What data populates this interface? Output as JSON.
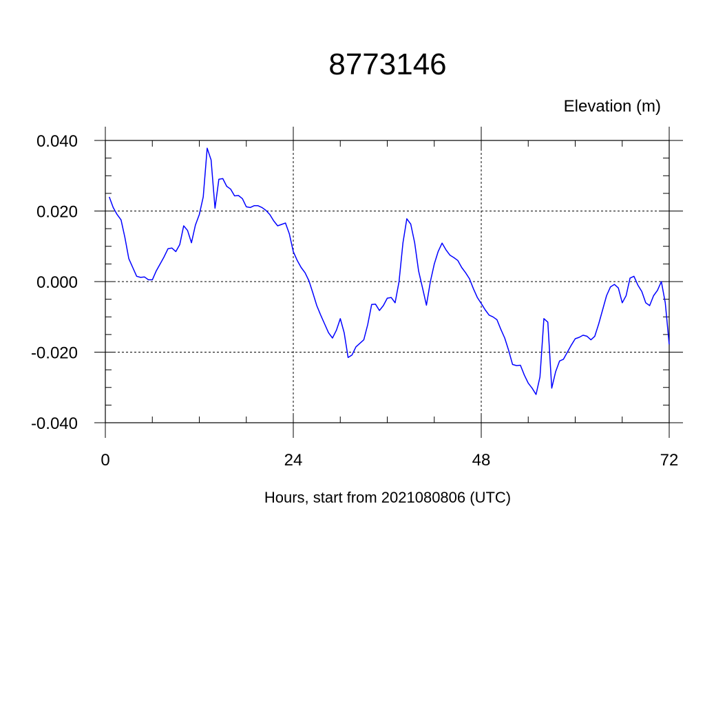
{
  "chart_data": {
    "type": "line",
    "title": "8773146",
    "ylabel": "Elevation (m)",
    "xlabel": "Hours, start from 2021080806 (UTC)",
    "xlim": [
      0,
      72
    ],
    "ylim": [
      -0.04,
      0.04
    ],
    "x_ticks": [
      0,
      24,
      48,
      72
    ],
    "x_tick_labels": [
      "0",
      "24",
      "48",
      "72"
    ],
    "y_ticks": [
      -0.04,
      -0.02,
      0.0,
      0.02,
      0.04
    ],
    "y_tick_labels": [
      "-0.040",
      "-0.020",
      "0.000",
      "0.020",
      "0.040"
    ],
    "grid": true,
    "series": [
      {
        "color": "#0000ff",
        "x": [
          0.5,
          1.0,
          1.5,
          2.0,
          2.5,
          3.0,
          3.5,
          4.0,
          4.5,
          5.0,
          5.5,
          6.0,
          6.5,
          7.0,
          7.5,
          8.0,
          8.5,
          9.0,
          9.5,
          10.0,
          10.5,
          11.0,
          11.5,
          12.0,
          12.5,
          13.0,
          13.5,
          14.0,
          14.5,
          15.0,
          15.5,
          16.0,
          16.5,
          17.0,
          17.5,
          18.0,
          18.5,
          19.0,
          19.5,
          20.0,
          20.5,
          21.0,
          21.5,
          22.0,
          22.5,
          23.0,
          23.5,
          24.0,
          24.5,
          25.0,
          25.5,
          26.0,
          26.5,
          27.0,
          27.5,
          28.0,
          28.5,
          29.0,
          29.5,
          30.0,
          30.5,
          31.0,
          31.5,
          32.0,
          32.5,
          33.0,
          33.5,
          34.0,
          34.5,
          35.0,
          35.5,
          36.0,
          36.5,
          37.0,
          37.5,
          38.0,
          38.5,
          39.0,
          39.5,
          40.0,
          40.5,
          41.0,
          41.5,
          42.0,
          42.5,
          43.0,
          43.5,
          44.0,
          44.5,
          45.0,
          45.5,
          46.0,
          46.5,
          47.0,
          47.5,
          48.0,
          48.5,
          49.0,
          49.5,
          50.0,
          50.5,
          51.0,
          51.5,
          52.0,
          52.5,
          53.0,
          53.5,
          54.0,
          54.5,
          55.0,
          55.5,
          56.0,
          56.5,
          57.0,
          57.5,
          58.0,
          58.5,
          59.0,
          59.5,
          60.0,
          60.5,
          61.0,
          61.5,
          62.0,
          62.5,
          63.0,
          63.5,
          64.0,
          64.5,
          65.0,
          65.5,
          66.0,
          66.5,
          67.0,
          67.5,
          68.0,
          68.5,
          69.0,
          69.5,
          70.0,
          70.5,
          71.0,
          71.5,
          72.0
        ],
        "y": [
          0.024,
          0.021,
          0.019,
          0.0175,
          0.0125,
          0.0065,
          0.004,
          0.0015,
          0.0012,
          0.0013,
          0.0005,
          0.0005,
          0.003,
          0.005,
          0.007,
          0.0093,
          0.0095,
          0.0085,
          0.0105,
          0.0158,
          0.0145,
          0.011,
          0.016,
          0.019,
          0.024,
          0.0378,
          0.0345,
          0.0208,
          0.029,
          0.0292,
          0.027,
          0.0262,
          0.0243,
          0.0244,
          0.0235,
          0.0212,
          0.021,
          0.0215,
          0.0215,
          0.021,
          0.0202,
          0.019,
          0.0172,
          0.0158,
          0.0162,
          0.0166,
          0.0135,
          0.0085,
          0.006,
          0.004,
          0.0025,
          0.0002,
          -0.0032,
          -0.0068,
          -0.0095,
          -0.012,
          -0.0145,
          -0.016,
          -0.0138,
          -0.0105,
          -0.0145,
          -0.0215,
          -0.0208,
          -0.0185,
          -0.0175,
          -0.0165,
          -0.0122,
          -0.0065,
          -0.0064,
          -0.0082,
          -0.0068,
          -0.0047,
          -0.0045,
          -0.006,
          0.0,
          0.011,
          0.0178,
          0.0163,
          0.011,
          0.003,
          -0.0018,
          -0.0067,
          0.0,
          0.005,
          0.0085,
          0.0109,
          0.009,
          0.0075,
          0.0068,
          0.006,
          0.004,
          0.0025,
          0.0008,
          -0.002,
          -0.0045,
          -0.0062,
          -0.008,
          -0.0095,
          -0.01,
          -0.0108,
          -0.0135,
          -0.016,
          -0.0195,
          -0.0235,
          -0.0238,
          -0.0237,
          -0.0265,
          -0.0288,
          -0.0302,
          -0.032,
          -0.027,
          -0.0105,
          -0.0115,
          -0.0302,
          -0.0255,
          -0.0225,
          -0.022,
          -0.02,
          -0.018,
          -0.0162,
          -0.0158,
          -0.0152,
          -0.0155,
          -0.0165,
          -0.0155,
          -0.012,
          -0.008,
          -0.004,
          -0.0015,
          -0.0008,
          -0.0018,
          -0.006,
          -0.004,
          0.001,
          0.0015,
          -0.001,
          -0.0028,
          -0.006,
          -0.0068,
          -0.004,
          -0.0025,
          0.0,
          -0.006,
          -0.0178
        ]
      }
    ]
  }
}
